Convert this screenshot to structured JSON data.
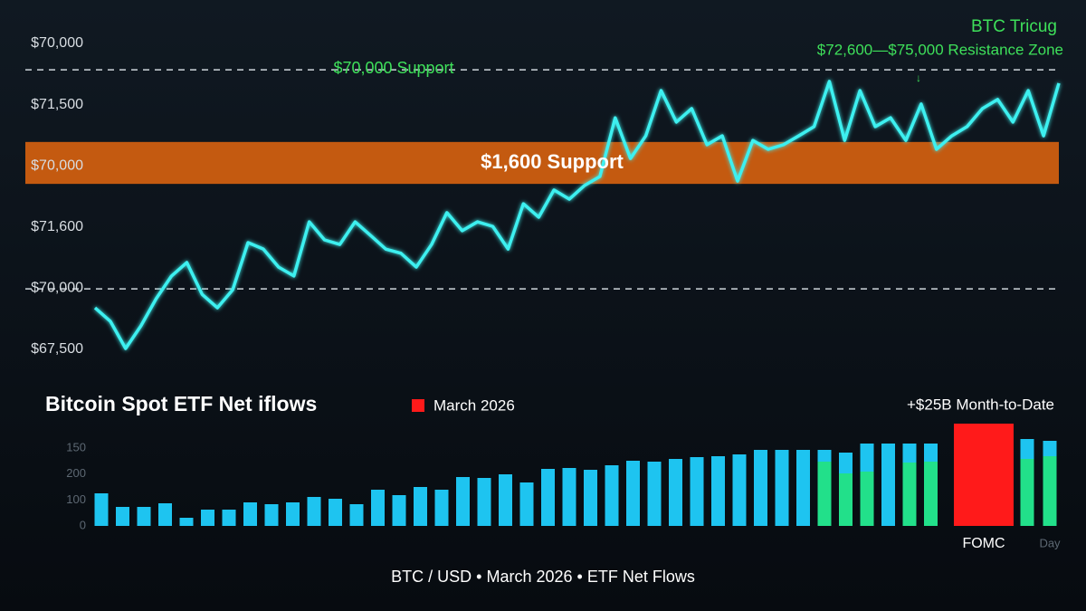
{
  "chart_data": [
    {
      "type": "line",
      "title": "BTC Tricug",
      "subtitle": "$72,600—$75,000 Resistance Zone",
      "y_labels": [
        "$70,000",
        "$71,500",
        "$70,000",
        "$71,600",
        "$70,000",
        "$67,500"
      ],
      "ylim": [
        0,
        100
      ],
      "color": "#3ef0f0",
      "reference_lines": [
        91.4,
        19.8
      ],
      "band": [
        54.1,
        67.8
      ],
      "band_color": "#d8620f",
      "annotations": [
        {
          "text": "$70,000 Support",
          "color": "#3ee05a"
        },
        {
          "text": "$1,600 Support",
          "color": "#ffffff"
        },
        {
          "text": "↓",
          "color": "#3ee05a"
        }
      ],
      "values": [
        13.6,
        9.2,
        0.3,
        7.7,
        16.6,
        24.0,
        28.4,
        18.0,
        13.6,
        19.5,
        34.9,
        32.8,
        26.9,
        24.0,
        41.7,
        35.8,
        34.3,
        41.7,
        37.3,
        32.8,
        31.4,
        26.9,
        34.3,
        44.7,
        38.8,
        41.7,
        40.2,
        32.8,
        47.6,
        43.2,
        52.1,
        49.1,
        53.6,
        56.5,
        75.7,
        62.4,
        69.8,
        84.6,
        74.3,
        78.7,
        66.9,
        69.8,
        55.0,
        68.3,
        65.4,
        66.9,
        69.8,
        72.8,
        87.6,
        68.3,
        84.6,
        72.8,
        75.7,
        68.3,
        80.2,
        65.4,
        69.8,
        72.8,
        78.7,
        81.7,
        74.3,
        84.6,
        69.8,
        87.0
      ]
    },
    {
      "type": "bar",
      "title": "Bitcoin Spot ETF Net iflows",
      "annotation": "+$25B Month-to-Date",
      "y_labels": [
        "150",
        "200",
        "100",
        "0"
      ],
      "ylim": [
        0,
        115
      ],
      "categories": [
        null,
        null,
        null,
        null,
        null,
        null,
        null,
        null,
        null,
        null,
        null,
        null,
        null,
        null,
        null,
        null,
        null,
        null,
        null,
        null,
        null,
        null,
        null,
        null,
        null,
        null,
        null,
        null,
        null,
        null,
        null,
        null,
        null,
        null,
        null,
        null,
        null,
        null,
        null,
        null,
        "FOMC",
        null,
        "Day"
      ],
      "series": [
        {
          "color": "#22e08a",
          "values": [
            null,
            null,
            null,
            null,
            null,
            null,
            null,
            null,
            null,
            null,
            null,
            null,
            null,
            null,
            null,
            null,
            null,
            null,
            null,
            null,
            null,
            null,
            null,
            null,
            null,
            null,
            null,
            null,
            null,
            null,
            null,
            null,
            null,
            null,
            71,
            58,
            60,
            null,
            70,
            71,
            null,
            74,
            77
          ]
        },
        {
          "color": "#1ec4f0",
          "values": [
            36,
            21,
            21,
            25,
            9,
            18,
            18,
            26,
            24,
            26,
            32,
            30,
            24,
            40,
            34,
            43,
            40,
            54,
            53,
            57,
            48,
            63,
            64,
            62,
            67,
            72,
            71,
            74,
            76,
            77,
            79,
            84,
            84,
            84,
            13,
            23,
            31,
            91,
            21,
            20,
            null,
            22,
            17
          ]
        },
        {
          "name": "March 2026",
          "color": "#ff1a1a",
          "values": [
            null,
            null,
            null,
            null,
            null,
            null,
            null,
            null,
            null,
            null,
            null,
            null,
            null,
            null,
            null,
            null,
            null,
            null,
            null,
            null,
            null,
            null,
            null,
            null,
            null,
            null,
            null,
            null,
            null,
            null,
            null,
            null,
            null,
            null,
            null,
            null,
            null,
            null,
            null,
            null,
            113,
            null,
            null
          ]
        }
      ]
    }
  ],
  "footer": "BTC / USD • March 2026 • ETF Net Flows"
}
